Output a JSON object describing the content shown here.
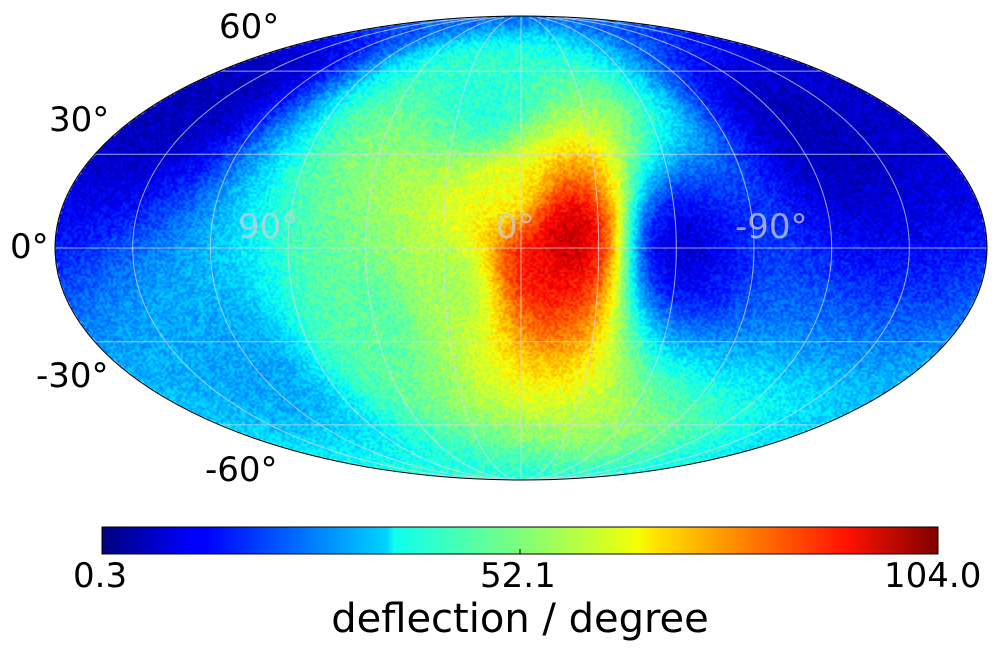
{
  "chart_data": {
    "type": "heatmap",
    "projection": "mollweide",
    "grid": true,
    "lat_labels": [
      "60°",
      "30°",
      "0°",
      "-30°",
      "-60°"
    ],
    "lon_labels": [
      "90°",
      "0°",
      "-90°"
    ],
    "lat_grid": [
      -60,
      -30,
      0,
      30,
      60
    ],
    "lon_grid": [
      -150,
      -120,
      -90,
      -60,
      -30,
      0,
      30,
      60,
      90,
      120,
      150
    ],
    "colorbar": {
      "colormap": "jet",
      "min": 0.3,
      "max": 104.0,
      "tick_values": [
        0.3,
        52.1,
        104.0
      ],
      "tick_labels": [
        "0.3",
        "52.1",
        "104.0"
      ],
      "label": "deflection / degree",
      "orientation": "horizontal",
      "position": "bottom"
    },
    "features": [
      {
        "lon": -18,
        "lat": 3,
        "value": 100
      },
      {
        "lon": -5,
        "lat": -4,
        "value": 92
      },
      {
        "lon": 5,
        "lat": 18,
        "value": 62
      },
      {
        "lon": 25,
        "lat": -12,
        "value": 55
      },
      {
        "lon": 60,
        "lat": -25,
        "value": 48
      },
      {
        "lon": 15,
        "lat": 45,
        "value": 42
      },
      {
        "lon": 120,
        "lat": -40,
        "value": 30
      },
      {
        "lon": -60,
        "lat": 0,
        "value": 8
      },
      {
        "lon": -130,
        "lat": 40,
        "value": 6
      },
      {
        "lon": 160,
        "lat": 50,
        "value": 6
      }
    ]
  }
}
